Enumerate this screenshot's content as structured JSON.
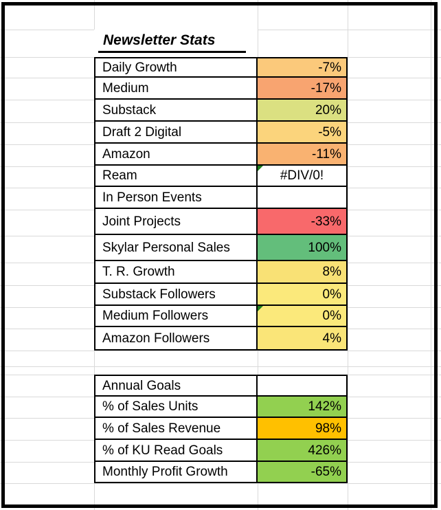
{
  "sheet": {
    "title": "Newsletter Stats",
    "gridline_color": "#d9d9d9",
    "border_color": "#000000",
    "error_indicator_color": "#1e7d1e"
  },
  "stats_table": {
    "rows": [
      {
        "label": "Daily Growth",
        "value": "-7%",
        "fill": "#FBC97B",
        "error_marker": false
      },
      {
        "label": "Medium",
        "value": "-17%",
        "fill": "#F8A470",
        "error_marker": false
      },
      {
        "label": "Substack",
        "value": "20%",
        "fill": "#DBE081",
        "error_marker": false
      },
      {
        "label": "Draft 2 Digital",
        "value": "-5%",
        "fill": "#FBD47C",
        "error_marker": false
      },
      {
        "label": "Amazon",
        "value": "-11%",
        "fill": "#F9B271",
        "error_marker": false
      },
      {
        "label": "Ream",
        "value": "#DIV/0!",
        "fill": "#FFFFFF",
        "error_marker": true,
        "align": "center"
      },
      {
        "label": "In Person Events",
        "value": "",
        "fill": "#FFFFFF",
        "error_marker": false
      },
      {
        "label": "Joint Projects",
        "value": "-33%",
        "fill": "#F8696B",
        "error_marker": false
      },
      {
        "label": "Skylar Personal Sales",
        "value": "100%",
        "fill": "#63BE7B",
        "error_marker": false
      },
      {
        "label": "T. R. Growth",
        "value": "8%",
        "fill": "#F9E175",
        "error_marker": false
      },
      {
        "label": "Substack Followers",
        "value": "0%",
        "fill": "#FBE97B",
        "error_marker": false
      },
      {
        "label": "Medium Followers",
        "value": "0%",
        "fill": "#FBE97B",
        "error_marker": true
      },
      {
        "label": "Amazon Followers",
        "value": "4%",
        "fill": "#FAE578",
        "error_marker": false
      }
    ]
  },
  "goals_table": {
    "rows": [
      {
        "label": "Annual Goals",
        "value": "",
        "fill": "#FFFFFF",
        "error_marker": false
      },
      {
        "label": "% of Sales Units",
        "value": "142%",
        "fill": "#92D050",
        "error_marker": false
      },
      {
        "label": "% of Sales Revenue",
        "value": "98%",
        "fill": "#FFC000",
        "error_marker": false
      },
      {
        "label": "% of KU Read Goals",
        "value": "426%",
        "fill": "#92D050",
        "error_marker": false
      },
      {
        "label": "Monthly Profit Growth",
        "value": "-65%",
        "fill": "#92D050",
        "error_marker": false
      }
    ]
  }
}
